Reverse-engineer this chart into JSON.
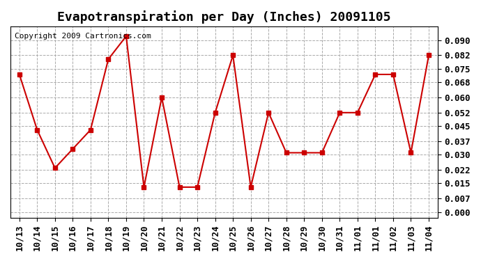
{
  "title": "Evapotranspiration per Day (Inches) 20091105",
  "copyright_text": "Copyright 2009 Cartronics.com",
  "x_labels": [
    "10/13",
    "10/14",
    "10/15",
    "10/16",
    "10/17",
    "10/18",
    "10/19",
    "10/20",
    "10/21",
    "10/22",
    "10/23",
    "10/24",
    "10/25",
    "10/26",
    "10/27",
    "10/28",
    "10/29",
    "10/30",
    "10/31",
    "11/01",
    "11/01",
    "11/02",
    "11/03",
    "11/04"
  ],
  "y_values": [
    0.072,
    0.043,
    0.023,
    0.033,
    0.043,
    0.08,
    0.092,
    0.013,
    0.06,
    0.013,
    0.013,
    0.052,
    0.082,
    0.013,
    0.052,
    0.031,
    0.031,
    0.031,
    0.052,
    0.052,
    0.072,
    0.072,
    0.031,
    0.082
  ],
  "y_ticks": [
    0.0,
    0.007,
    0.015,
    0.022,
    0.03,
    0.037,
    0.045,
    0.052,
    0.06,
    0.068,
    0.075,
    0.082,
    0.09
  ],
  "line_color": "#cc0000",
  "marker": "s",
  "marker_size": 4,
  "background_color": "#ffffff",
  "grid_color": "#aaaaaa",
  "title_fontsize": 13,
  "tick_fontsize": 9,
  "copyright_fontsize": 8
}
